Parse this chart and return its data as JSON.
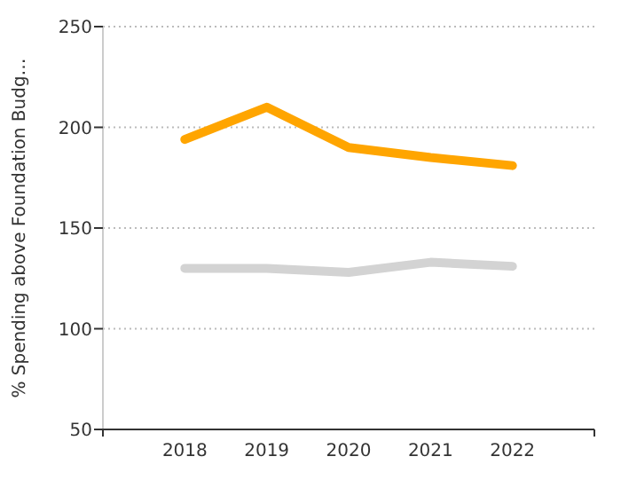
{
  "chart_data": {
    "type": "line",
    "ylabel": "% Spending above Foundation Budg…",
    "x": [
      2018,
      2019,
      2020,
      2021,
      2022
    ],
    "xlim": [
      2017,
      2023
    ],
    "xticks": [
      {
        "value": 2017,
        "label": null
      },
      2018,
      2019,
      2020,
      2021,
      2022,
      {
        "value": 2023,
        "label": null
      }
    ],
    "ylim": [
      50,
      250
    ],
    "yticks": [
      50,
      100,
      150,
      200,
      250
    ],
    "grid": "y",
    "marker": "none",
    "line_style": "solid",
    "series": [
      {
        "color": "#ffa500",
        "values": [
          194,
          210,
          190,
          185,
          181
        ]
      },
      {
        "color": "#d3d3d3",
        "values": [
          130,
          130,
          128,
          133,
          131
        ]
      }
    ]
  }
}
